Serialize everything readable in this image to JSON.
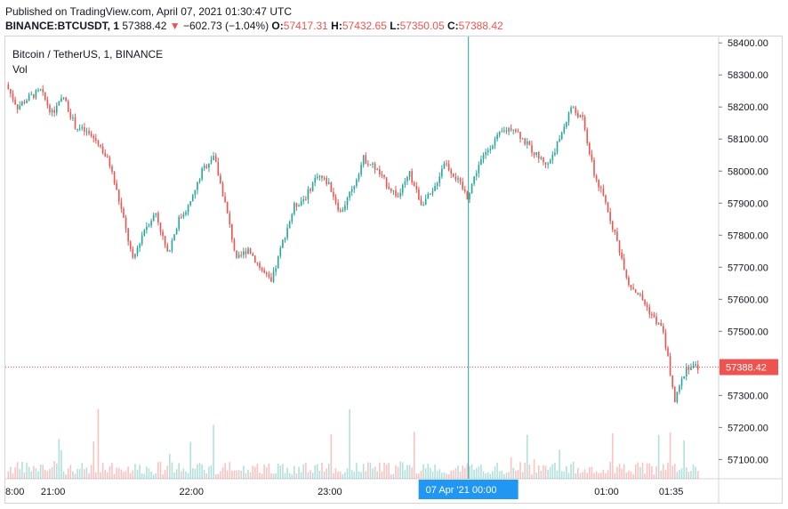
{
  "header": {
    "published": "Published on TradingView.com, April 07, 2021 01:30:47 UTC",
    "symbol": "BINANCE:BTCUSDT, 1",
    "last": "57388.42",
    "change_arrow": "▼",
    "change": "−602.73 (−1.04%)",
    "o_label": "O:",
    "o": "57417.31",
    "h_label": "H:",
    "h": "57432.65",
    "l_label": "L:",
    "l": "57350.05",
    "c_label": "C:",
    "c": "57388.42"
  },
  "legend": {
    "title": "Bitcoin / TetherUS, 1, BINANCE",
    "vol": "Vol"
  },
  "colors": {
    "up": "#26a69a",
    "down": "#ef5350",
    "crosshair": "#26a69a",
    "time_label_bg": "#2196f3"
  },
  "crosshair_label": "07 Apr '21   00:00",
  "price_label": "57388.42",
  "chart_data": {
    "type": "candlestick",
    "title": "Bitcoin / TetherUS, 1, BINANCE",
    "y_ticks": [
      "58400.00",
      "58300.00",
      "58200.00",
      "58100.00",
      "58000.00",
      "57900.00",
      "57800.00",
      "57700.00",
      "57600.00",
      "57500.00",
      "57300.00",
      "57200.00",
      "57100.00"
    ],
    "y_tick_values": [
      58400,
      58300,
      58200,
      58100,
      58000,
      57900,
      57800,
      57700,
      57600,
      57500,
      57300,
      57200,
      57100
    ],
    "ylim": [
      57040,
      58420
    ],
    "x_ticks": [
      "8:00",
      "21:00",
      "22:00",
      "23:00",
      "01:00",
      "01:35"
    ],
    "x_tick_minutes": [
      -1,
      20,
      80,
      140,
      260,
      288
    ],
    "last_price": 57388.42,
    "crosshair_minute": 200,
    "close_path": [
      [
        0,
        58270
      ],
      [
        5,
        58200
      ],
      [
        10,
        58230
      ],
      [
        15,
        58250
      ],
      [
        20,
        58180
      ],
      [
        25,
        58230
      ],
      [
        30,
        58140
      ],
      [
        35,
        58120
      ],
      [
        40,
        58090
      ],
      [
        45,
        58020
      ],
      [
        50,
        57880
      ],
      [
        55,
        57720
      ],
      [
        60,
        57820
      ],
      [
        65,
        57870
      ],
      [
        70,
        57740
      ],
      [
        75,
        57850
      ],
      [
        80,
        57900
      ],
      [
        85,
        58000
      ],
      [
        90,
        58050
      ],
      [
        95,
        57900
      ],
      [
        100,
        57720
      ],
      [
        105,
        57760
      ],
      [
        110,
        57700
      ],
      [
        115,
        57650
      ],
      [
        120,
        57780
      ],
      [
        125,
        57890
      ],
      [
        130,
        57920
      ],
      [
        135,
        57990
      ],
      [
        140,
        57960
      ],
      [
        145,
        57870
      ],
      [
        150,
        57940
      ],
      [
        155,
        58040
      ],
      [
        160,
        58010
      ],
      [
        165,
        57960
      ],
      [
        170,
        57920
      ],
      [
        175,
        57990
      ],
      [
        180,
        57900
      ],
      [
        185,
        57930
      ],
      [
        190,
        58030
      ],
      [
        195,
        57980
      ],
      [
        200,
        57920
      ],
      [
        205,
        58020
      ],
      [
        210,
        58080
      ],
      [
        215,
        58120
      ],
      [
        220,
        58140
      ],
      [
        225,
        58090
      ],
      [
        230,
        58050
      ],
      [
        235,
        58020
      ],
      [
        240,
        58100
      ],
      [
        245,
        58200
      ],
      [
        250,
        58160
      ],
      [
        255,
        57990
      ],
      [
        260,
        57900
      ],
      [
        265,
        57780
      ],
      [
        270,
        57650
      ],
      [
        275,
        57610
      ],
      [
        280,
        57550
      ],
      [
        285,
        57500
      ],
      [
        290,
        57280
      ],
      [
        295,
        57390
      ],
      [
        300,
        57388
      ]
    ],
    "volume_max": 57
  }
}
